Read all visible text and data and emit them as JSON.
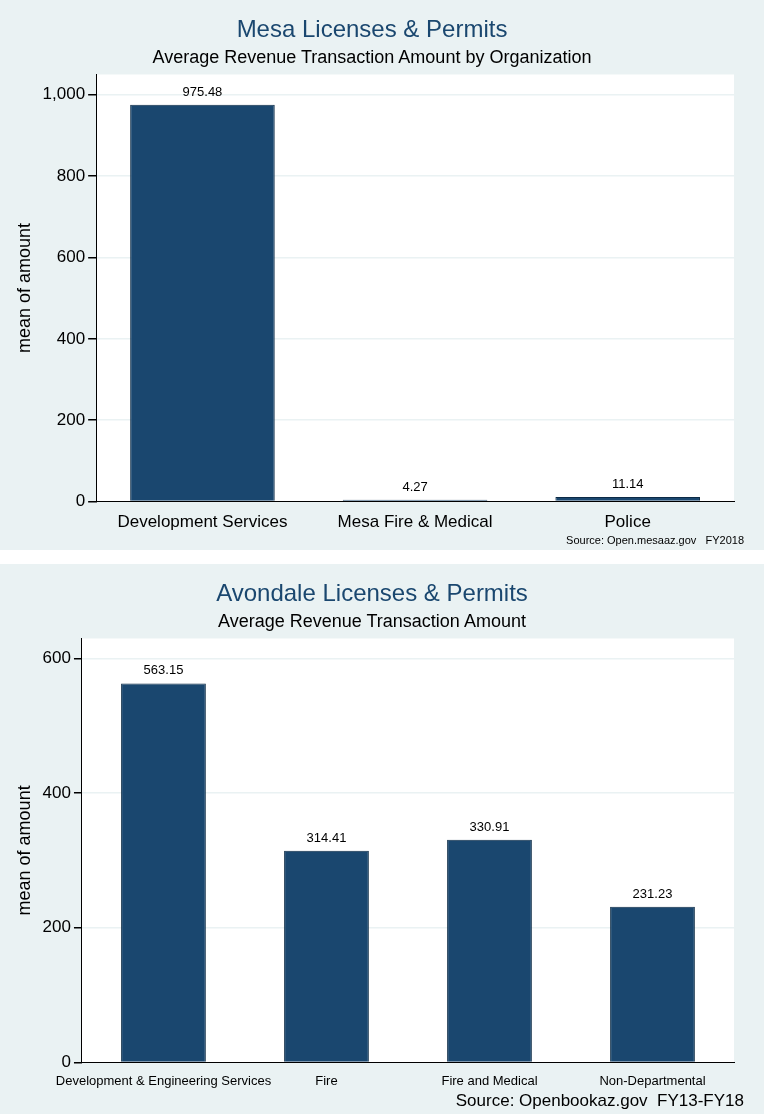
{
  "chart_data": [
    {
      "type": "bar",
      "title": "Mesa Licenses & Permits",
      "subtitle": "Average Revenue Transaction Amount by Organization",
      "ylabel": "mean of amount",
      "categories": [
        "Development Services",
        "Mesa Fire & Medical",
        "Police"
      ],
      "values": [
        975.48,
        4.27,
        11.14
      ],
      "color": "#1a476f",
      "ylim": [
        0,
        1050
      ],
      "yticks": [
        0,
        200,
        400,
        600,
        800,
        {
          "value": 1000,
          "label": "1,000"
        }
      ],
      "grid": "y",
      "data_labels": true,
      "legend": false,
      "annotations": [
        "Source: Open.mesaaz.gov   FY2018"
      ]
    },
    {
      "type": "bar",
      "title": "Avondale Licenses & Permits",
      "subtitle": "Average Revenue Transaction Amount",
      "ylabel": "mean of amount",
      "categories": [
        "Development & Engineering Services",
        "Fire",
        "Fire and Medical",
        "Non-Departmental"
      ],
      "values": [
        563.15,
        314.41,
        330.91,
        231.23
      ],
      "color": "#1a476f",
      "ylim": [
        0,
        630
      ],
      "yticks": [
        0,
        200,
        400,
        600
      ],
      "grid": "y",
      "data_labels": true,
      "legend": false,
      "annotations": [
        "Source: Openbookaz.gov  FY13-FY18"
      ]
    }
  ]
}
